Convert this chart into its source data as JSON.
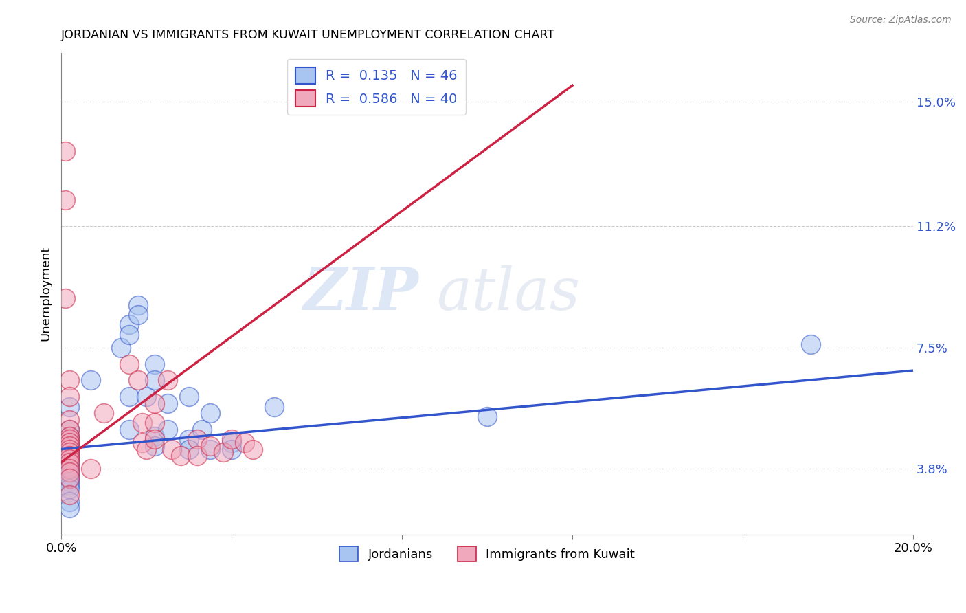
{
  "title": "JORDANIAN VS IMMIGRANTS FROM KUWAIT UNEMPLOYMENT CORRELATION CHART",
  "source": "Source: ZipAtlas.com",
  "ylabel": "Unemployment",
  "xlim": [
    0.0,
    0.2
  ],
  "ylim": [
    0.018,
    0.165
  ],
  "yticks": [
    0.038,
    0.075,
    0.112,
    0.15
  ],
  "ytick_labels": [
    "3.8%",
    "7.5%",
    "11.2%",
    "15.0%"
  ],
  "xticks": [
    0.0,
    0.04,
    0.08,
    0.12,
    0.16,
    0.2
  ],
  "xtick_labels": [
    "0.0%",
    "",
    "",
    "",
    "",
    "20.0%"
  ],
  "blue_color": "#a8c4f0",
  "pink_color": "#f0a8bc",
  "blue_line_color": "#3355cc",
  "pink_line_color": "#cc2244",
  "R_blue": 0.135,
  "N_blue": 46,
  "R_pink": 0.586,
  "N_pink": 40,
  "blue_line_x": [
    0.0,
    0.2
  ],
  "blue_line_y": [
    0.044,
    0.068
  ],
  "pink_line_x": [
    0.0,
    0.12
  ],
  "pink_line_y": [
    0.04,
    0.155
  ],
  "blue_scatter": [
    [
      0.002,
      0.057
    ],
    [
      0.002,
      0.05
    ],
    [
      0.002,
      0.048
    ],
    [
      0.002,
      0.046
    ],
    [
      0.002,
      0.045
    ],
    [
      0.002,
      0.044
    ],
    [
      0.002,
      0.043
    ],
    [
      0.002,
      0.042
    ],
    [
      0.002,
      0.041
    ],
    [
      0.002,
      0.04
    ],
    [
      0.002,
      0.039
    ],
    [
      0.002,
      0.038
    ],
    [
      0.002,
      0.037
    ],
    [
      0.002,
      0.036
    ],
    [
      0.002,
      0.035
    ],
    [
      0.002,
      0.034
    ],
    [
      0.002,
      0.033
    ],
    [
      0.002,
      0.032
    ],
    [
      0.002,
      0.028
    ],
    [
      0.002,
      0.026
    ],
    [
      0.007,
      0.065
    ],
    [
      0.014,
      0.075
    ],
    [
      0.016,
      0.082
    ],
    [
      0.016,
      0.079
    ],
    [
      0.016,
      0.06
    ],
    [
      0.016,
      0.05
    ],
    [
      0.018,
      0.088
    ],
    [
      0.018,
      0.085
    ],
    [
      0.02,
      0.06
    ],
    [
      0.022,
      0.07
    ],
    [
      0.022,
      0.065
    ],
    [
      0.022,
      0.048
    ],
    [
      0.022,
      0.045
    ],
    [
      0.025,
      0.058
    ],
    [
      0.025,
      0.05
    ],
    [
      0.03,
      0.06
    ],
    [
      0.03,
      0.047
    ],
    [
      0.03,
      0.044
    ],
    [
      0.033,
      0.05
    ],
    [
      0.035,
      0.055
    ],
    [
      0.035,
      0.044
    ],
    [
      0.04,
      0.046
    ],
    [
      0.04,
      0.044
    ],
    [
      0.05,
      0.057
    ],
    [
      0.1,
      0.054
    ],
    [
      0.176,
      0.076
    ]
  ],
  "pink_scatter": [
    [
      0.001,
      0.135
    ],
    [
      0.001,
      0.12
    ],
    [
      0.001,
      0.09
    ],
    [
      0.002,
      0.065
    ],
    [
      0.002,
      0.06
    ],
    [
      0.002,
      0.053
    ],
    [
      0.002,
      0.05
    ],
    [
      0.002,
      0.048
    ],
    [
      0.002,
      0.047
    ],
    [
      0.002,
      0.046
    ],
    [
      0.002,
      0.045
    ],
    [
      0.002,
      0.044
    ],
    [
      0.002,
      0.043
    ],
    [
      0.002,
      0.042
    ],
    [
      0.002,
      0.041
    ],
    [
      0.002,
      0.04
    ],
    [
      0.002,
      0.038
    ],
    [
      0.002,
      0.037
    ],
    [
      0.002,
      0.035
    ],
    [
      0.002,
      0.03
    ],
    [
      0.007,
      0.038
    ],
    [
      0.01,
      0.055
    ],
    [
      0.016,
      0.07
    ],
    [
      0.018,
      0.065
    ],
    [
      0.019,
      0.052
    ],
    [
      0.019,
      0.046
    ],
    [
      0.02,
      0.044
    ],
    [
      0.022,
      0.058
    ],
    [
      0.022,
      0.052
    ],
    [
      0.022,
      0.047
    ],
    [
      0.025,
      0.065
    ],
    [
      0.026,
      0.044
    ],
    [
      0.028,
      0.042
    ],
    [
      0.032,
      0.047
    ],
    [
      0.032,
      0.042
    ],
    [
      0.035,
      0.045
    ],
    [
      0.038,
      0.043
    ],
    [
      0.04,
      0.047
    ],
    [
      0.043,
      0.046
    ],
    [
      0.045,
      0.044
    ]
  ]
}
